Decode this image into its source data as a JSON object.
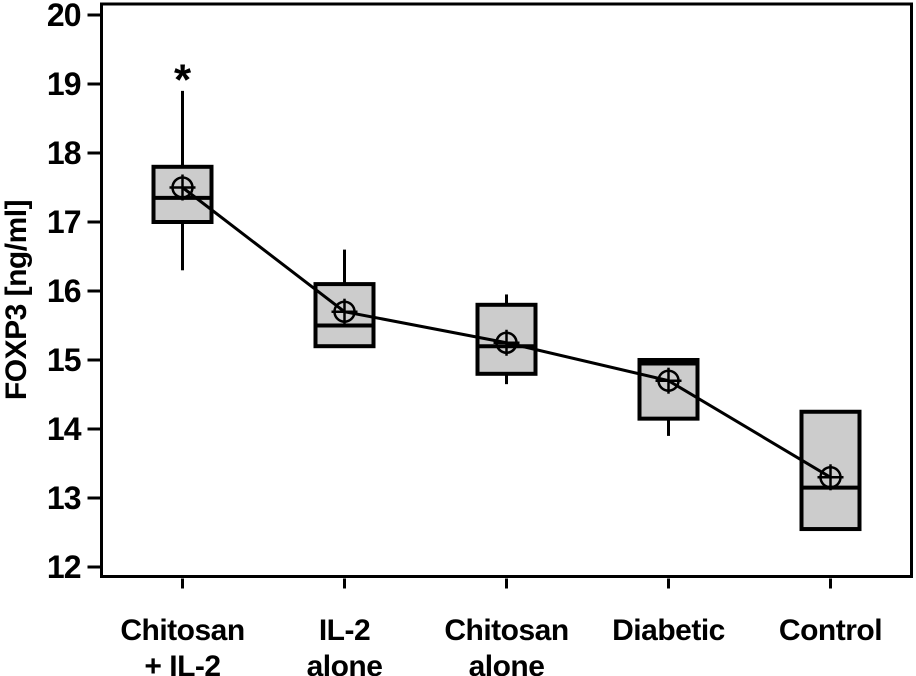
{
  "figure": {
    "background": "#ffffff"
  },
  "chart_data": {
    "type": "box",
    "title": "",
    "xlabel": "",
    "ylabel": "FOXP3 [ng/ml]",
    "ylim": [
      12,
      20
    ],
    "yticks": [
      12,
      13,
      14,
      15,
      16,
      17,
      18,
      19,
      20
    ],
    "grid": false,
    "legend": null,
    "mean_line": true,
    "categories": [
      {
        "lines": [
          "Chitosan",
          "+ IL-2"
        ]
      },
      {
        "lines": [
          "IL-2",
          "alone"
        ]
      },
      {
        "lines": [
          "Chitosan",
          "alone"
        ]
      },
      {
        "lines": [
          "Diabetic"
        ]
      },
      {
        "lines": [
          "Control"
        ]
      }
    ],
    "boxes": [
      {
        "name": "chitosan-plus-il2",
        "whisker_low": 16.3,
        "q1": 17.0,
        "median": 17.35,
        "q3": 17.8,
        "whisker_high": 18.9,
        "mean": 17.5,
        "annotation": "*",
        "annotation_y": 19.15
      },
      {
        "name": "il2-alone",
        "whisker_low": null,
        "q1": 15.2,
        "median": 15.5,
        "q3": 16.1,
        "whisker_high": 16.6,
        "mean": 15.7,
        "annotation": null,
        "annotation_y": null
      },
      {
        "name": "chitosan-alone",
        "whisker_low": 14.65,
        "q1": 14.8,
        "median": 15.2,
        "q3": 15.8,
        "whisker_high": 15.95,
        "mean": 15.25,
        "annotation": null,
        "annotation_y": null
      },
      {
        "name": "diabetic",
        "whisker_low": 13.9,
        "q1": 14.15,
        "median": 14.95,
        "q3": 15.0,
        "whisker_high": null,
        "mean": 14.7,
        "annotation": null,
        "annotation_y": null
      },
      {
        "name": "control",
        "whisker_low": null,
        "q1": 12.55,
        "median": 13.15,
        "q3": 14.25,
        "whisker_high": null,
        "mean": 13.3,
        "annotation": null,
        "annotation_y": null
      }
    ],
    "colors": {
      "box_fill": "#cccccc",
      "stroke": "#000000",
      "background": "#ffffff"
    }
  }
}
